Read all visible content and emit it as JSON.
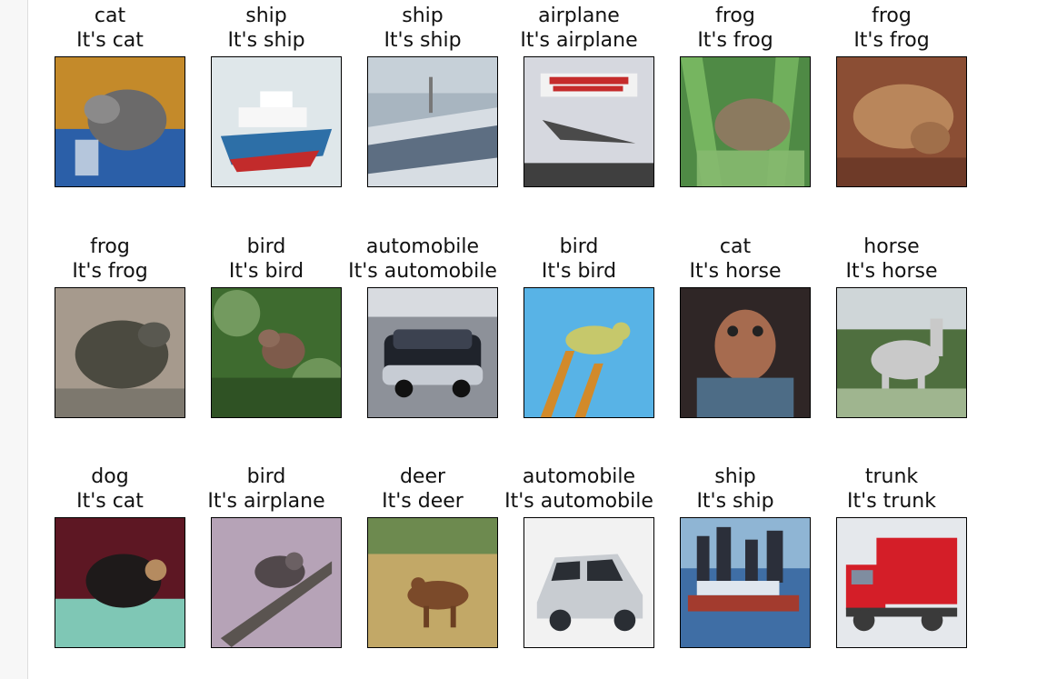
{
  "items": [
    {
      "label": "cat",
      "prediction": "It's cat",
      "bg": "#c48a2a",
      "fg": "#6b6a6a",
      "accent": "#2b5fa8",
      "icon": "cat-photo-icon"
    },
    {
      "label": "ship",
      "prediction": "It's ship",
      "bg": "#dfe7ea",
      "fg": "#2d6fa7",
      "accent": "#c22b2b",
      "icon": "ship-photo-icon"
    },
    {
      "label": "ship",
      "prediction": "It's ship",
      "bg": "#a8b5c0",
      "fg": "#5d6e82",
      "accent": "#d7dde3",
      "icon": "ship-photo-icon"
    },
    {
      "label": "airplane",
      "prediction": "It's airplane",
      "bg": "#d6d8df",
      "fg": "#4a4a4a",
      "accent": "#c52b2b",
      "icon": "airplane-photo-icon"
    },
    {
      "label": "frog",
      "prediction": "It's frog",
      "bg": "#4f8a45",
      "fg": "#8b7a5f",
      "accent": "#7fbf67",
      "icon": "frog-photo-icon"
    },
    {
      "label": "frog",
      "prediction": "It's frog",
      "bg": "#8b4e34",
      "fg": "#b9865b",
      "accent": "#6e3a28",
      "icon": "frog-photo-icon"
    },
    {
      "label": "frog",
      "prediction": "It's frog",
      "bg": "#a69a8d",
      "fg": "#4b4a40",
      "accent": "#7d786e",
      "icon": "frog-photo-icon"
    },
    {
      "label": "bird",
      "prediction": "It's bird",
      "bg": "#3e6b2f",
      "fg": "#7e5b4b",
      "accent": "#a8c98f",
      "icon": "bird-photo-icon"
    },
    {
      "label": "automobile",
      "prediction": "It's automobile",
      "bg": "#8d9199",
      "fg": "#1f232b",
      "accent": "#d8dbe0",
      "icon": "car-photo-icon"
    },
    {
      "label": "bird",
      "prediction": "It's bird",
      "bg": "#58b3e6",
      "fg": "#c6c86b",
      "accent": "#d28a2a",
      "icon": "bird-photo-icon"
    },
    {
      "label": "cat",
      "prediction": "It's horse",
      "bg": "#2f2626",
      "fg": "#a66b4f",
      "accent": "#4d6c86",
      "icon": "cat-photo-icon"
    },
    {
      "label": "horse",
      "prediction": "It's horse",
      "bg": "#4f6f3f",
      "fg": "#c9c9c9",
      "accent": "#9fb58f",
      "icon": "horse-photo-icon"
    },
    {
      "label": "dog",
      "prediction": "It's cat",
      "bg": "#5d1723",
      "fg": "#1e1a1a",
      "accent": "#7fc7b5",
      "icon": "dog-photo-icon"
    },
    {
      "label": "bird",
      "prediction": "It's airplane",
      "bg": "#b6a3b7",
      "fg": "#51484b",
      "accent": "#5a5450",
      "icon": "bird-photo-icon"
    },
    {
      "label": "deer",
      "prediction": "It's deer",
      "bg": "#c2a867",
      "fg": "#7b4a2a",
      "accent": "#6d8a4f",
      "icon": "deer-photo-icon"
    },
    {
      "label": "automobile",
      "prediction": "It's automobile",
      "bg": "#f2f2f2",
      "fg": "#c8ccd1",
      "accent": "#2a2e34",
      "icon": "car-photo-icon"
    },
    {
      "label": "ship",
      "prediction": "It's ship",
      "bg": "#3f6ea5",
      "fg": "#2b2f3a",
      "accent": "#a33b2e",
      "icon": "ship-photo-icon"
    },
    {
      "label": "trunk",
      "prediction": "It's trunk",
      "bg": "#e5e8ec",
      "fg": "#d41e28",
      "accent": "#3a3a3a",
      "icon": "truck-photo-icon"
    }
  ]
}
